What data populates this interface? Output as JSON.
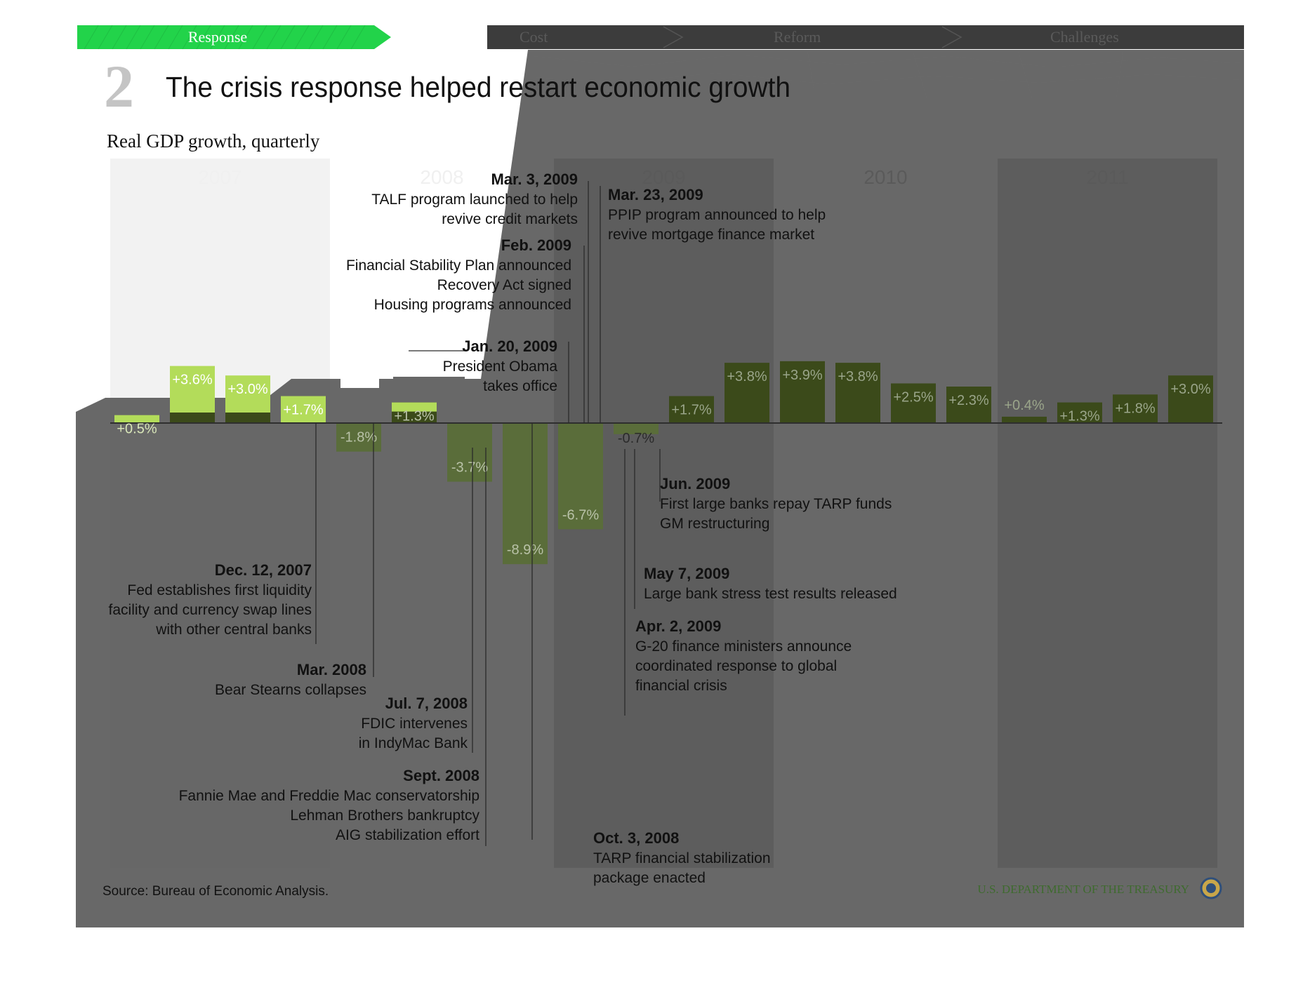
{
  "nav": {
    "tabs": [
      {
        "label": "Response",
        "active": true
      },
      {
        "label": "Cost",
        "active": false
      },
      {
        "label": "Reform",
        "active": false
      },
      {
        "label": "Challenges",
        "active": false
      }
    ]
  },
  "header": {
    "number": "2",
    "title": "The crisis response helped restart economic growth",
    "subtitle": "Real GDP growth, quarterly"
  },
  "footer": {
    "source": "Source: Bureau of Economic Analysis.",
    "agency": "U.S. DEPARTMENT OF THE TREASURY"
  },
  "colors": {
    "response_tab": "#22d34a",
    "bright_green_bar": "#b3dc5a",
    "dark_green_bar": "#3b4a1a",
    "muted_green_bar": "#5a6d3a",
    "overlay_gray": "#5d5d5d",
    "year_band": "#666666",
    "agency_text": "#3e6b2e"
  },
  "chart_data": {
    "type": "bar",
    "title": "Real GDP growth, quarterly",
    "unit": "%",
    "years": [
      "2007",
      "2008",
      "2009",
      "2010",
      "2011"
    ],
    "quarters_per_year": 4,
    "values": [
      0.5,
      3.6,
      3.0,
      1.7,
      -1.8,
      1.3,
      -3.7,
      -8.9,
      -6.7,
      -0.7,
      1.7,
      3.8,
      3.9,
      3.8,
      2.5,
      2.3,
      0.4,
      1.3,
      1.8,
      3.0
    ],
    "labels": [
      "+0.5%",
      "+3.6%",
      "+3.0%",
      "+1.7%",
      "-1.8%",
      "+1.3%",
      "-3.7%",
      "-8.9%",
      "-6.7%",
      "-0.7%",
      "+1.7%",
      "+3.8%",
      "+3.9%",
      "+3.8%",
      "+2.5%",
      "+2.3%",
      "+0.4%",
      "+1.3%",
      "+1.8%",
      "+3.0%"
    ],
    "ylim": [
      -9.5,
      4.5
    ],
    "grid": false,
    "annotations": [
      {
        "date": "Dec. 12, 2007",
        "text": [
          "Fed establishes first liquidity",
          "facility and currency swap lines",
          "with other central banks"
        ]
      },
      {
        "date": "Mar. 2008",
        "text": [
          "Bear Stearns collapses"
        ]
      },
      {
        "date": "Jul. 7, 2008",
        "text": [
          "FDIC intervenes",
          "in IndyMac Bank"
        ]
      },
      {
        "date": "Sept. 2008",
        "text": [
          "Fannie Mae and Freddie Mac conservatorship",
          "Lehman Brothers bankruptcy",
          "AIG stabilization effort"
        ]
      },
      {
        "date": "Oct. 3, 2008",
        "text": [
          "TARP financial stabilization",
          "package enacted"
        ]
      },
      {
        "date": "Jan. 20, 2009",
        "text": [
          "President Obama",
          "takes office"
        ]
      },
      {
        "date": "Feb. 2009",
        "text": [
          "Financial Stability Plan announced",
          "Recovery Act signed",
          "Housing programs announced"
        ]
      },
      {
        "date": "Mar. 3, 2009",
        "text": [
          "TALF program launched to help",
          "revive credit markets"
        ]
      },
      {
        "date": "Mar. 23, 2009",
        "text": [
          "PPIP program announced to help",
          "revive mortgage finance market"
        ]
      },
      {
        "date": "Apr. 2, 2009",
        "text": [
          "G-20 finance ministers announce",
          "coordinated response to global",
          "financial crisis"
        ]
      },
      {
        "date": "May 7, 2009",
        "text": [
          "Large bank stress test results released"
        ]
      },
      {
        "date": "Jun. 2009",
        "text": [
          "First large banks repay TARP funds",
          "GM restructuring"
        ]
      }
    ]
  }
}
